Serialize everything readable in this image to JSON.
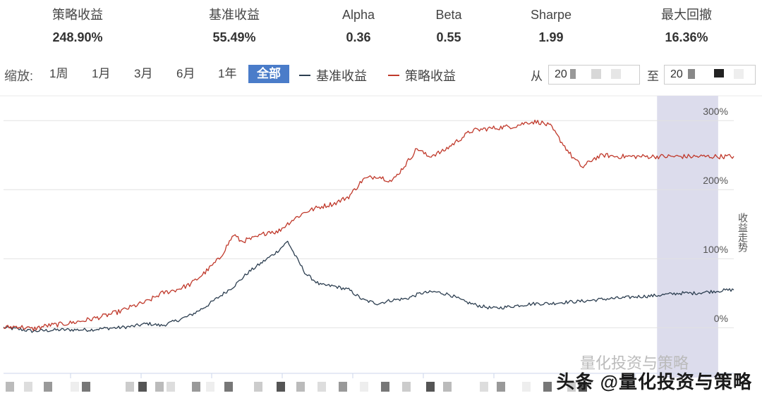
{
  "stats": [
    {
      "label": "策略收益",
      "value": "248.90%"
    },
    {
      "label": "基准收益",
      "value": "55.49%"
    },
    {
      "label": "Alpha",
      "value": "0.36"
    },
    {
      "label": "Beta",
      "value": "0.55"
    },
    {
      "label": "Sharpe",
      "value": "1.99"
    },
    {
      "label": "最大回撤",
      "value": "16.36%"
    }
  ],
  "toolbar": {
    "zoom_label": "缩放:",
    "zoom_buttons": [
      "1周",
      "1月",
      "3月",
      "6月",
      "1年",
      "全部"
    ],
    "active_zoom": "全部",
    "range_from_label": "从",
    "range_to_label": "至",
    "range_from_value": "20",
    "range_to_value": "20"
  },
  "watermark": {
    "main": "头条 @量化投资与策略",
    "faint": "量化投资与策略"
  },
  "colors": {
    "strategy": "#c0392b",
    "benchmark": "#2c3e50",
    "active_button": "#4a7cc9",
    "highlight_band": "#dcdcec",
    "grid": "#e6e6e6"
  },
  "chart_data": {
    "type": "line",
    "ylabel": "收益走势",
    "ylim": [
      -60,
      340
    ],
    "yticks": [
      0,
      100,
      200,
      300
    ],
    "ytick_labels": [
      "0%",
      "100%",
      "200%",
      "300%"
    ],
    "x_count": 515,
    "highlight_range": [
      460,
      503
    ],
    "series": [
      {
        "name": "策略收益",
        "color": "#c0392b",
        "keypoints": [
          [
            0,
            0
          ],
          [
            20,
            2
          ],
          [
            40,
            -2
          ],
          [
            60,
            3
          ],
          [
            80,
            5
          ],
          [
            100,
            8
          ],
          [
            120,
            12
          ],
          [
            140,
            17
          ],
          [
            160,
            23
          ],
          [
            180,
            31
          ],
          [
            200,
            38
          ],
          [
            220,
            50
          ],
          [
            240,
            55
          ],
          [
            260,
            63
          ],
          [
            280,
            80
          ],
          [
            300,
            100
          ],
          [
            320,
            135
          ],
          [
            330,
            125
          ],
          [
            350,
            130
          ],
          [
            370,
            140
          ],
          [
            380,
            138
          ],
          [
            400,
            155
          ],
          [
            420,
            168
          ],
          [
            440,
            175
          ],
          [
            460,
            180
          ],
          [
            480,
            190
          ],
          [
            500,
            215
          ],
          [
            520,
            220
          ],
          [
            540,
            212
          ],
          [
            560,
            238
          ],
          [
            575,
            260
          ],
          [
            590,
            248
          ],
          [
            610,
            255
          ],
          [
            630,
            270
          ],
          [
            650,
            285
          ],
          [
            670,
            288
          ],
          [
            690,
            290
          ],
          [
            710,
            292
          ],
          [
            730,
            298
          ],
          [
            745,
            298
          ],
          [
            760,
            292
          ],
          [
            775,
            270
          ],
          [
            790,
            248
          ],
          [
            805,
            232
          ],
          [
            820,
            245
          ],
          [
            835,
            250
          ],
          [
            850,
            248
          ]
        ]
      },
      {
        "name": "基准收益",
        "color": "#2c3e50",
        "keypoints": [
          [
            0,
            0
          ],
          [
            20,
            -2
          ],
          [
            40,
            -5
          ],
          [
            60,
            -4
          ],
          [
            80,
            -3
          ],
          [
            100,
            -3
          ],
          [
            120,
            -3
          ],
          [
            140,
            -1
          ],
          [
            160,
            0
          ],
          [
            180,
            2
          ],
          [
            200,
            6
          ],
          [
            220,
            3
          ],
          [
            240,
            10
          ],
          [
            260,
            18
          ],
          [
            280,
            30
          ],
          [
            300,
            45
          ],
          [
            320,
            60
          ],
          [
            340,
            80
          ],
          [
            360,
            95
          ],
          [
            380,
            110
          ],
          [
            395,
            125
          ],
          [
            405,
            105
          ],
          [
            420,
            78
          ],
          [
            440,
            62
          ],
          [
            460,
            60
          ],
          [
            480,
            55
          ],
          [
            500,
            40
          ],
          [
            520,
            35
          ],
          [
            540,
            40
          ],
          [
            560,
            42
          ],
          [
            580,
            50
          ],
          [
            600,
            52
          ],
          [
            620,
            48
          ],
          [
            640,
            38
          ],
          [
            660,
            32
          ],
          [
            680,
            28
          ],
          [
            700,
            30
          ],
          [
            720,
            33
          ],
          [
            740,
            35
          ],
          [
            760,
            35
          ],
          [
            780,
            37
          ],
          [
            800,
            38
          ],
          [
            820,
            40
          ],
          [
            840,
            42
          ],
          [
            860,
            43
          ],
          [
            880,
            45
          ],
          [
            900,
            46
          ],
          [
            920,
            48
          ],
          [
            940,
            50
          ],
          [
            960,
            50
          ],
          [
            980,
            52
          ],
          [
            1000,
            54
          ],
          [
            1015,
            55
          ]
        ]
      }
    ]
  }
}
